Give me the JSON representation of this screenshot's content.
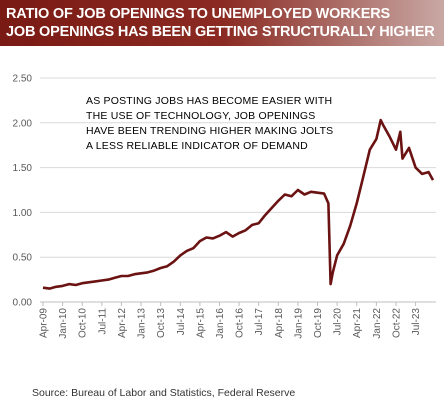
{
  "header": {
    "line1": "RATIO OF JOB OPENINGS TO UNEMPLOYED WORKERS",
    "line2": "JOB OPENINGS HAS BEEN GETTING STRUCTURALLY HIGHER"
  },
  "annotation": [
    "AS POSTING JOBS HAS BECOME EASIER WITH",
    "THE USE OF TECHNOLOGY, JOB OPENINGS",
    "HAVE BEEN TRENDING HIGHER MAKING JOLTS",
    "A LESS RELIABLE INDICATOR OF DEMAND"
  ],
  "source": "Source: Bureau of Labor and Statistics, Federal Reserve",
  "colors": {
    "header_bg": "#7a1a14",
    "line": "#6b1212",
    "grid": "#d9d9d9",
    "axis_text": "#595959"
  },
  "chart_data": {
    "type": "line",
    "title": "RATIO OF JOB OPENINGS TO UNEMPLOYED WORKERS",
    "subtitle": "JOB OPENINGS HAS BEEN GETTING STRUCTURALLY HIGHER",
    "xlabel": "",
    "ylabel": "",
    "ylim": [
      0,
      2.5
    ],
    "yticks": [
      0.0,
      0.5,
      1.0,
      1.5,
      2.0,
      2.5
    ],
    "ytick_labels": [
      "0.00",
      "0.50",
      "1.00",
      "1.50",
      "2.00",
      "2.50"
    ],
    "x_tick_labels": [
      "Apr-09",
      "Jan-10",
      "Oct-10",
      "Jul-11",
      "Apr-12",
      "Jan-13",
      "Oct-13",
      "Jul-14",
      "Apr-15",
      "Jan-16",
      "Oct-16",
      "Jul-17",
      "Apr-18",
      "Jan-19",
      "Oct-19",
      "Jul-20",
      "Apr-21",
      "Jan-22",
      "Oct-22",
      "Jul-23"
    ],
    "grid": true,
    "legend": "none",
    "series": [
      {
        "x": [
          "2009-04",
          "2009-07",
          "2009-10",
          "2010-01",
          "2010-04",
          "2010-07",
          "2010-10",
          "2011-01",
          "2011-04",
          "2011-07",
          "2011-10",
          "2012-01",
          "2012-04",
          "2012-07",
          "2012-10",
          "2013-01",
          "2013-04",
          "2013-07",
          "2013-10",
          "2014-01",
          "2014-04",
          "2014-07",
          "2014-10",
          "2015-01",
          "2015-04",
          "2015-07",
          "2015-10",
          "2016-01",
          "2016-04",
          "2016-07",
          "2016-10",
          "2017-01",
          "2017-04",
          "2017-07",
          "2017-10",
          "2018-01",
          "2018-04",
          "2018-07",
          "2018-10",
          "2019-01",
          "2019-04",
          "2019-07",
          "2019-10",
          "2020-01",
          "2020-03",
          "2020-04",
          "2020-05",
          "2020-07",
          "2020-10",
          "2021-01",
          "2021-04",
          "2021-07",
          "2021-10",
          "2022-01",
          "2022-03",
          "2022-04",
          "2022-07",
          "2022-10",
          "2022-12",
          "2023-01",
          "2023-04",
          "2023-07",
          "2023-10",
          "2024-01",
          "2024-03"
        ],
        "values": [
          0.16,
          0.15,
          0.17,
          0.18,
          0.2,
          0.19,
          0.21,
          0.22,
          0.23,
          0.24,
          0.25,
          0.27,
          0.29,
          0.29,
          0.31,
          0.32,
          0.33,
          0.35,
          0.38,
          0.4,
          0.45,
          0.52,
          0.57,
          0.6,
          0.68,
          0.72,
          0.71,
          0.74,
          0.78,
          0.73,
          0.77,
          0.8,
          0.86,
          0.88,
          0.97,
          1.05,
          1.13,
          1.2,
          1.18,
          1.25,
          1.2,
          1.23,
          1.22,
          1.21,
          1.1,
          0.2,
          0.33,
          0.52,
          0.65,
          0.85,
          1.1,
          1.4,
          1.7,
          1.82,
          2.03,
          1.98,
          1.85,
          1.7,
          1.9,
          1.6,
          1.72,
          1.5,
          1.43,
          1.45,
          1.36
        ]
      }
    ]
  }
}
